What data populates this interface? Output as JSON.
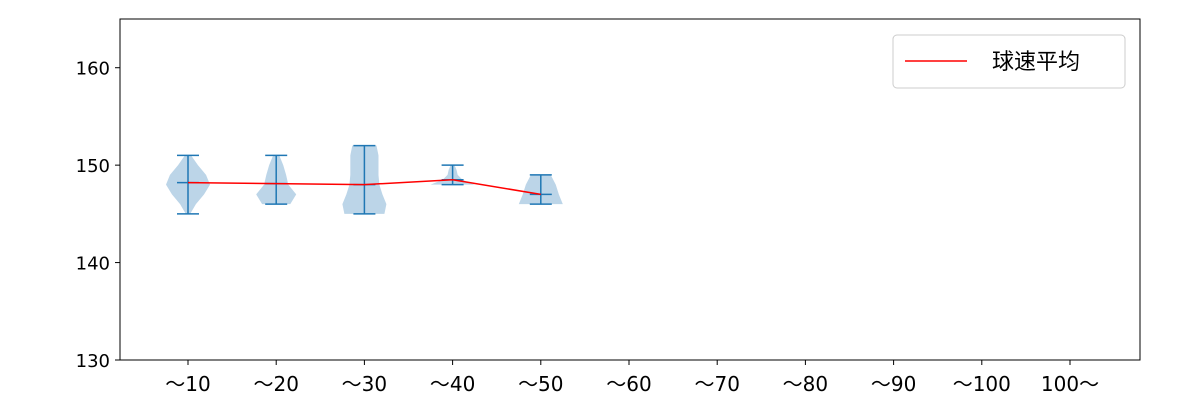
{
  "chart_data": {
    "type": "violin",
    "title": "",
    "xlabel": "",
    "ylabel": "",
    "categories": [
      "～10",
      "～20",
      "～30",
      "～40",
      "～50",
      "～60",
      "～70",
      "～80",
      "～90",
      "～100",
      "100～"
    ],
    "ylim": [
      130,
      165
    ],
    "yticks": [
      130,
      140,
      150,
      160
    ],
    "grid": false,
    "legend": {
      "placement": "top-right",
      "entries": [
        {
          "label": "球速平均",
          "color": "#ff0000"
        }
      ]
    },
    "violin_color": "#1f77b4",
    "violin_fill": "#bcd5e8",
    "violins": [
      {
        "category": "～10",
        "min": 145,
        "max": 151,
        "mean": 148.2,
        "density": [
          0.1,
          0.36,
          0.73,
          1,
          0.82,
          0.45,
          0.14
        ]
      },
      {
        "category": "～20",
        "min": 146,
        "max": 151,
        "mean": 148.1,
        "density": [
          0.64,
          0.91,
          0.55,
          0.45,
          0.32,
          0.14
        ]
      },
      {
        "category": "～30",
        "min": 145,
        "max": 152,
        "mean": 148.0,
        "density": [
          0.91,
          1,
          0.82,
          0.68,
          0.64,
          0.64,
          0.64,
          0.55
        ]
      },
      {
        "category": "～40",
        "min": 148,
        "max": 150,
        "mean": 148.5,
        "density": [
          1,
          0.45,
          0.23,
          0.18,
          0.09
        ]
      },
      {
        "category": "～50",
        "min": 146,
        "max": 149,
        "mean": 147.0,
        "density": [
          1,
          0.82,
          0.68,
          0.45
        ]
      }
    ],
    "series": [
      {
        "name": "球速平均",
        "color": "#ff0000",
        "values": [
          148.2,
          148.1,
          148.0,
          148.5,
          147.0
        ]
      }
    ]
  }
}
